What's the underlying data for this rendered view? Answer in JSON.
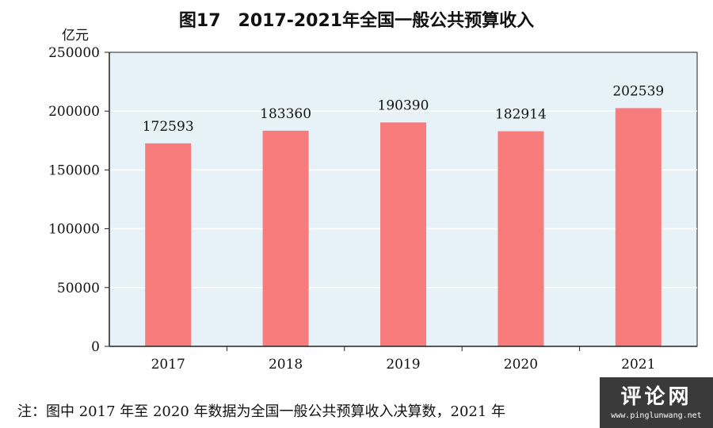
{
  "chart_data": {
    "type": "bar",
    "title": "图17　2017-2021年全国一般公共预算收入",
    "ylabel": "亿元",
    "xlabel": "",
    "categories": [
      "2017",
      "2018",
      "2019",
      "2020",
      "2021"
    ],
    "values": [
      172593,
      183360,
      190390,
      182914,
      202539
    ],
    "ylim": [
      0,
      250000
    ],
    "yticks": [
      0,
      50000,
      100000,
      150000,
      200000,
      250000
    ],
    "grid": true,
    "colors": {
      "bar": "#f87c7c",
      "plot_bg": "#e7f2f8",
      "grid": "#ffffff"
    }
  },
  "footnote": "注：图中 2017 年至 2020 年数据为全国一般公共预算收入决算数，2021 年",
  "watermark": {
    "name": "评论网",
    "url": "www.pinglunwang.net"
  }
}
